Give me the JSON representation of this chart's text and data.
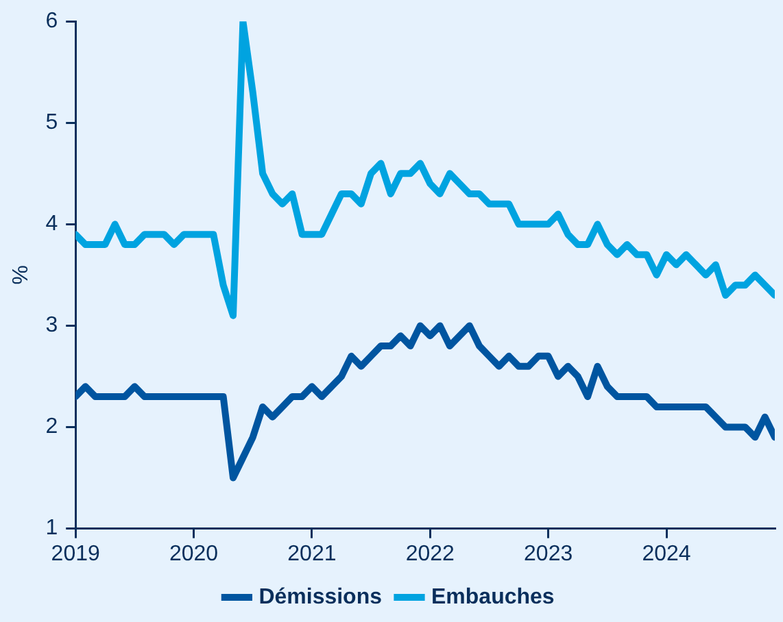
{
  "chart_data": {
    "type": "line",
    "ylabel": "%",
    "x": [
      "2019-01",
      "2019-02",
      "2019-03",
      "2019-04",
      "2019-05",
      "2019-06",
      "2019-07",
      "2019-08",
      "2019-09",
      "2019-10",
      "2019-11",
      "2019-12",
      "2020-01",
      "2020-02",
      "2020-03",
      "2020-04",
      "2020-05",
      "2020-06",
      "2020-07",
      "2020-08",
      "2020-09",
      "2020-10",
      "2020-11",
      "2020-12",
      "2021-01",
      "2021-02",
      "2021-03",
      "2021-04",
      "2021-05",
      "2021-06",
      "2021-07",
      "2021-08",
      "2021-09",
      "2021-10",
      "2021-11",
      "2021-12",
      "2022-01",
      "2022-02",
      "2022-03",
      "2022-04",
      "2022-05",
      "2022-06",
      "2022-07",
      "2022-08",
      "2022-09",
      "2022-10",
      "2022-11",
      "2022-12",
      "2023-01",
      "2023-02",
      "2023-03",
      "2023-04",
      "2023-05",
      "2023-06",
      "2023-07",
      "2023-08",
      "2023-09",
      "2023-10",
      "2023-11",
      "2023-12",
      "2024-01",
      "2024-02",
      "2024-03",
      "2024-04",
      "2024-05",
      "2024-06",
      "2024-07",
      "2024-08",
      "2024-09",
      "2024-10",
      "2024-11",
      "2024-12"
    ],
    "series": [
      {
        "name": "Démissions",
        "color": "#0055a0",
        "values": [
          2.3,
          2.4,
          2.3,
          2.3,
          2.3,
          2.3,
          2.4,
          2.3,
          2.3,
          2.3,
          2.3,
          2.3,
          2.3,
          2.3,
          2.3,
          2.3,
          1.5,
          1.7,
          1.9,
          2.2,
          2.1,
          2.2,
          2.3,
          2.3,
          2.4,
          2.3,
          2.4,
          2.5,
          2.7,
          2.6,
          2.7,
          2.8,
          2.8,
          2.9,
          2.8,
          3.0,
          2.9,
          3.0,
          2.8,
          2.9,
          3.0,
          2.8,
          2.7,
          2.6,
          2.7,
          2.6,
          2.6,
          2.7,
          2.7,
          2.5,
          2.6,
          2.5,
          2.3,
          2.6,
          2.4,
          2.3,
          2.3,
          2.3,
          2.3,
          2.2,
          2.2,
          2.2,
          2.2,
          2.2,
          2.2,
          2.1,
          2.0,
          2.0,
          2.0,
          1.9,
          2.1,
          1.9
        ]
      },
      {
        "name": "Embauches",
        "color": "#00a3e0",
        "values": [
          3.9,
          3.8,
          3.8,
          3.8,
          4.0,
          3.8,
          3.8,
          3.9,
          3.9,
          3.9,
          3.8,
          3.9,
          3.9,
          3.9,
          3.9,
          3.4,
          3.1,
          6.0,
          5.3,
          4.5,
          4.3,
          4.2,
          4.3,
          3.9,
          3.9,
          3.9,
          4.1,
          4.3,
          4.3,
          4.2,
          4.5,
          4.6,
          4.3,
          4.5,
          4.5,
          4.6,
          4.4,
          4.3,
          4.5,
          4.4,
          4.3,
          4.3,
          4.2,
          4.2,
          4.2,
          4.0,
          4.0,
          4.0,
          4.0,
          4.1,
          3.9,
          3.8,
          3.8,
          4.0,
          3.8,
          3.7,
          3.8,
          3.7,
          3.7,
          3.5,
          3.7,
          3.6,
          3.7,
          3.6,
          3.5,
          3.6,
          3.3,
          3.4,
          3.4,
          3.5,
          3.4,
          3.3
        ]
      }
    ],
    "xlim": [
      "2019-01",
      "2024-12"
    ],
    "xticks": [
      {
        "value": "2019",
        "label": "2019"
      },
      {
        "value": "2020",
        "label": "2020"
      },
      {
        "value": "2021",
        "label": "2021"
      },
      {
        "value": "2022",
        "label": "2022"
      },
      {
        "value": "2023",
        "label": "2023"
      },
      {
        "value": "2024",
        "label": "2024"
      }
    ],
    "ylim": [
      1,
      6
    ],
    "yticks": [
      1,
      2,
      3,
      4,
      5,
      6
    ],
    "grid": false,
    "legend": "bottom",
    "marker": "none",
    "line_style": "solid"
  }
}
